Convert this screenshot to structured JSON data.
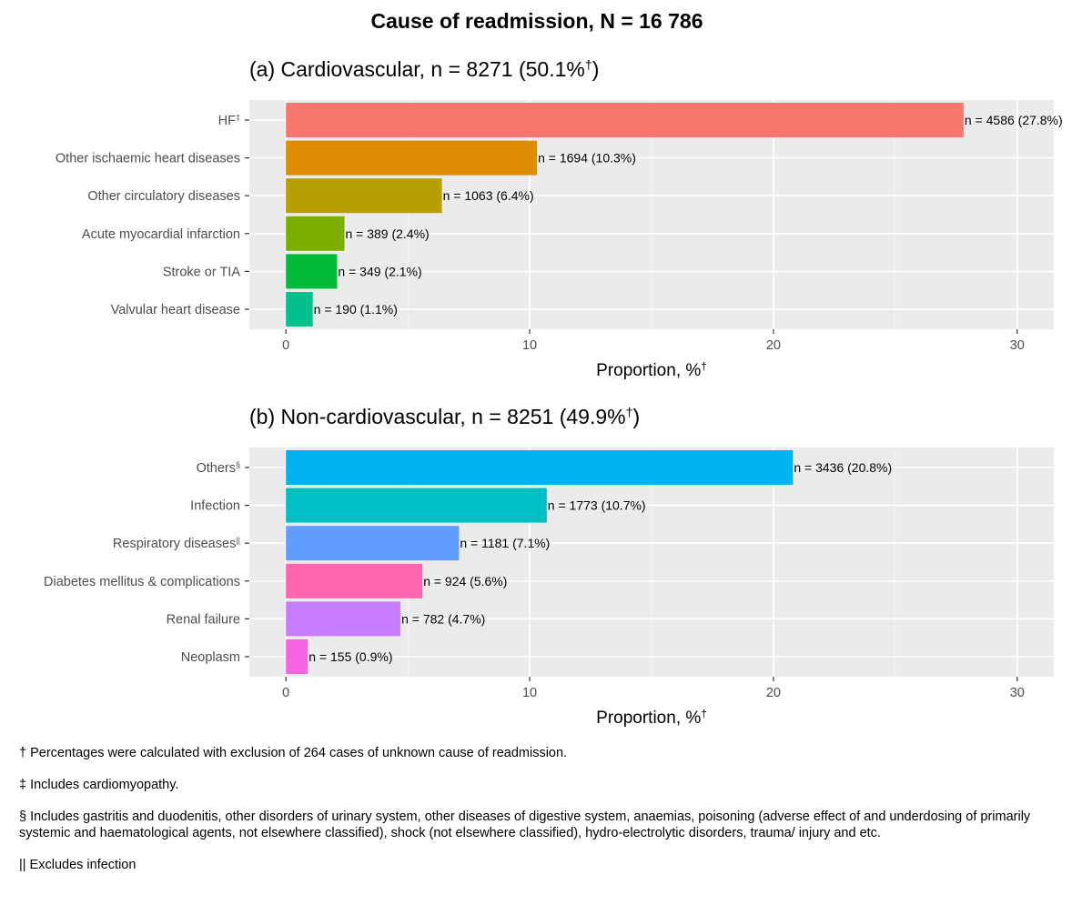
{
  "page_title": "Cause of readmission, N = 16 786",
  "chart_data": [
    {
      "type": "bar",
      "orientation": "horizontal",
      "title": "(a) Cardiovascular, n = 8271 (50.1%",
      "title_sup": "†",
      "title_end": ")",
      "xlabel": "Proportion, %",
      "xlabel_sup": "†",
      "xlim": [
        -1.5,
        31.5
      ],
      "xticks": [
        0,
        10,
        20,
        30
      ],
      "grid": true,
      "categories": [
        {
          "label": "HF",
          "sup": "‡",
          "value": 27.8,
          "n": 4586,
          "data_label": "n = 4586 (27.8%)",
          "color": "#F8766D"
        },
        {
          "label": "Other ischaemic heart diseases",
          "sup": "",
          "value": 10.3,
          "n": 1694,
          "data_label": "n = 1694 (10.3%)",
          "color": "#DE8C00"
        },
        {
          "label": "Other circulatory diseases",
          "sup": "",
          "value": 6.4,
          "n": 1063,
          "data_label": "n = 1063 (6.4%)",
          "color": "#B79F00"
        },
        {
          "label": "Acute myocardial infarction",
          "sup": "",
          "value": 2.4,
          "n": 389,
          "data_label": "n = 389 (2.4%)",
          "color": "#7CAE00"
        },
        {
          "label": "Stroke or TIA",
          "sup": "",
          "value": 2.1,
          "n": 349,
          "data_label": "n = 349 (2.1%)",
          "color": "#00BA38"
        },
        {
          "label": "Valvular heart disease",
          "sup": "",
          "value": 1.1,
          "n": 190,
          "data_label": "n = 190 (1.1%)",
          "color": "#00C08B"
        }
      ]
    },
    {
      "type": "bar",
      "orientation": "horizontal",
      "title": "(b) Non-cardiovascular, n = 8251 (49.9%",
      "title_sup": "†",
      "title_end": ")",
      "xlabel": "Proportion, %",
      "xlabel_sup": "†",
      "xlim": [
        -1.5,
        31.5
      ],
      "xticks": [
        0,
        10,
        20,
        30
      ],
      "grid": true,
      "categories": [
        {
          "label": "Others",
          "sup": "§",
          "value": 20.8,
          "n": 3436,
          "data_label": "n = 3436 (20.8%)",
          "color": "#00B4F0"
        },
        {
          "label": "Infection",
          "sup": "",
          "value": 10.7,
          "n": 1773,
          "data_label": "n = 1773 (10.7%)",
          "color": "#00BFC4"
        },
        {
          "label": "Respiratory diseases",
          "sup": "||",
          "value": 7.1,
          "n": 1181,
          "data_label": "n = 1181 (7.1%)",
          "color": "#619CFF"
        },
        {
          "label": "Diabetes mellitus & complications",
          "sup": "",
          "value": 5.6,
          "n": 924,
          "data_label": "n = 924 (5.6%)",
          "color": "#FF64B0"
        },
        {
          "label": "Renal failure",
          "sup": "",
          "value": 4.7,
          "n": 782,
          "data_label": "n = 782 (4.7%)",
          "color": "#C77CFF"
        },
        {
          "label": "Neoplasm",
          "sup": "",
          "value": 0.9,
          "n": 155,
          "data_label": "n = 155 (0.9%)",
          "color": "#F564E3"
        }
      ]
    }
  ],
  "footnotes": [
    "† Percentages were calculated with exclusion of 264 cases of unknown cause of readmission.",
    "‡ Includes cardiomyopathy.",
    "§ Includes gastritis and duodenitis, other disorders of urinary system, other diseases of digestive system, anaemias, poisoning (adverse effect of and underdosing of primarily systemic and haematological agents, not elsewhere classified), shock (not elsewhere classified), hydro-electrolytic disorders, trauma/ injury and etc.",
    "|| Excludes infection"
  ],
  "colors": {
    "panel_background": "#EBEBEB",
    "grid_major": "#FFFFFF",
    "grid_minor": "#F5F5F5",
    "axis_text": "#4D4D4D"
  }
}
